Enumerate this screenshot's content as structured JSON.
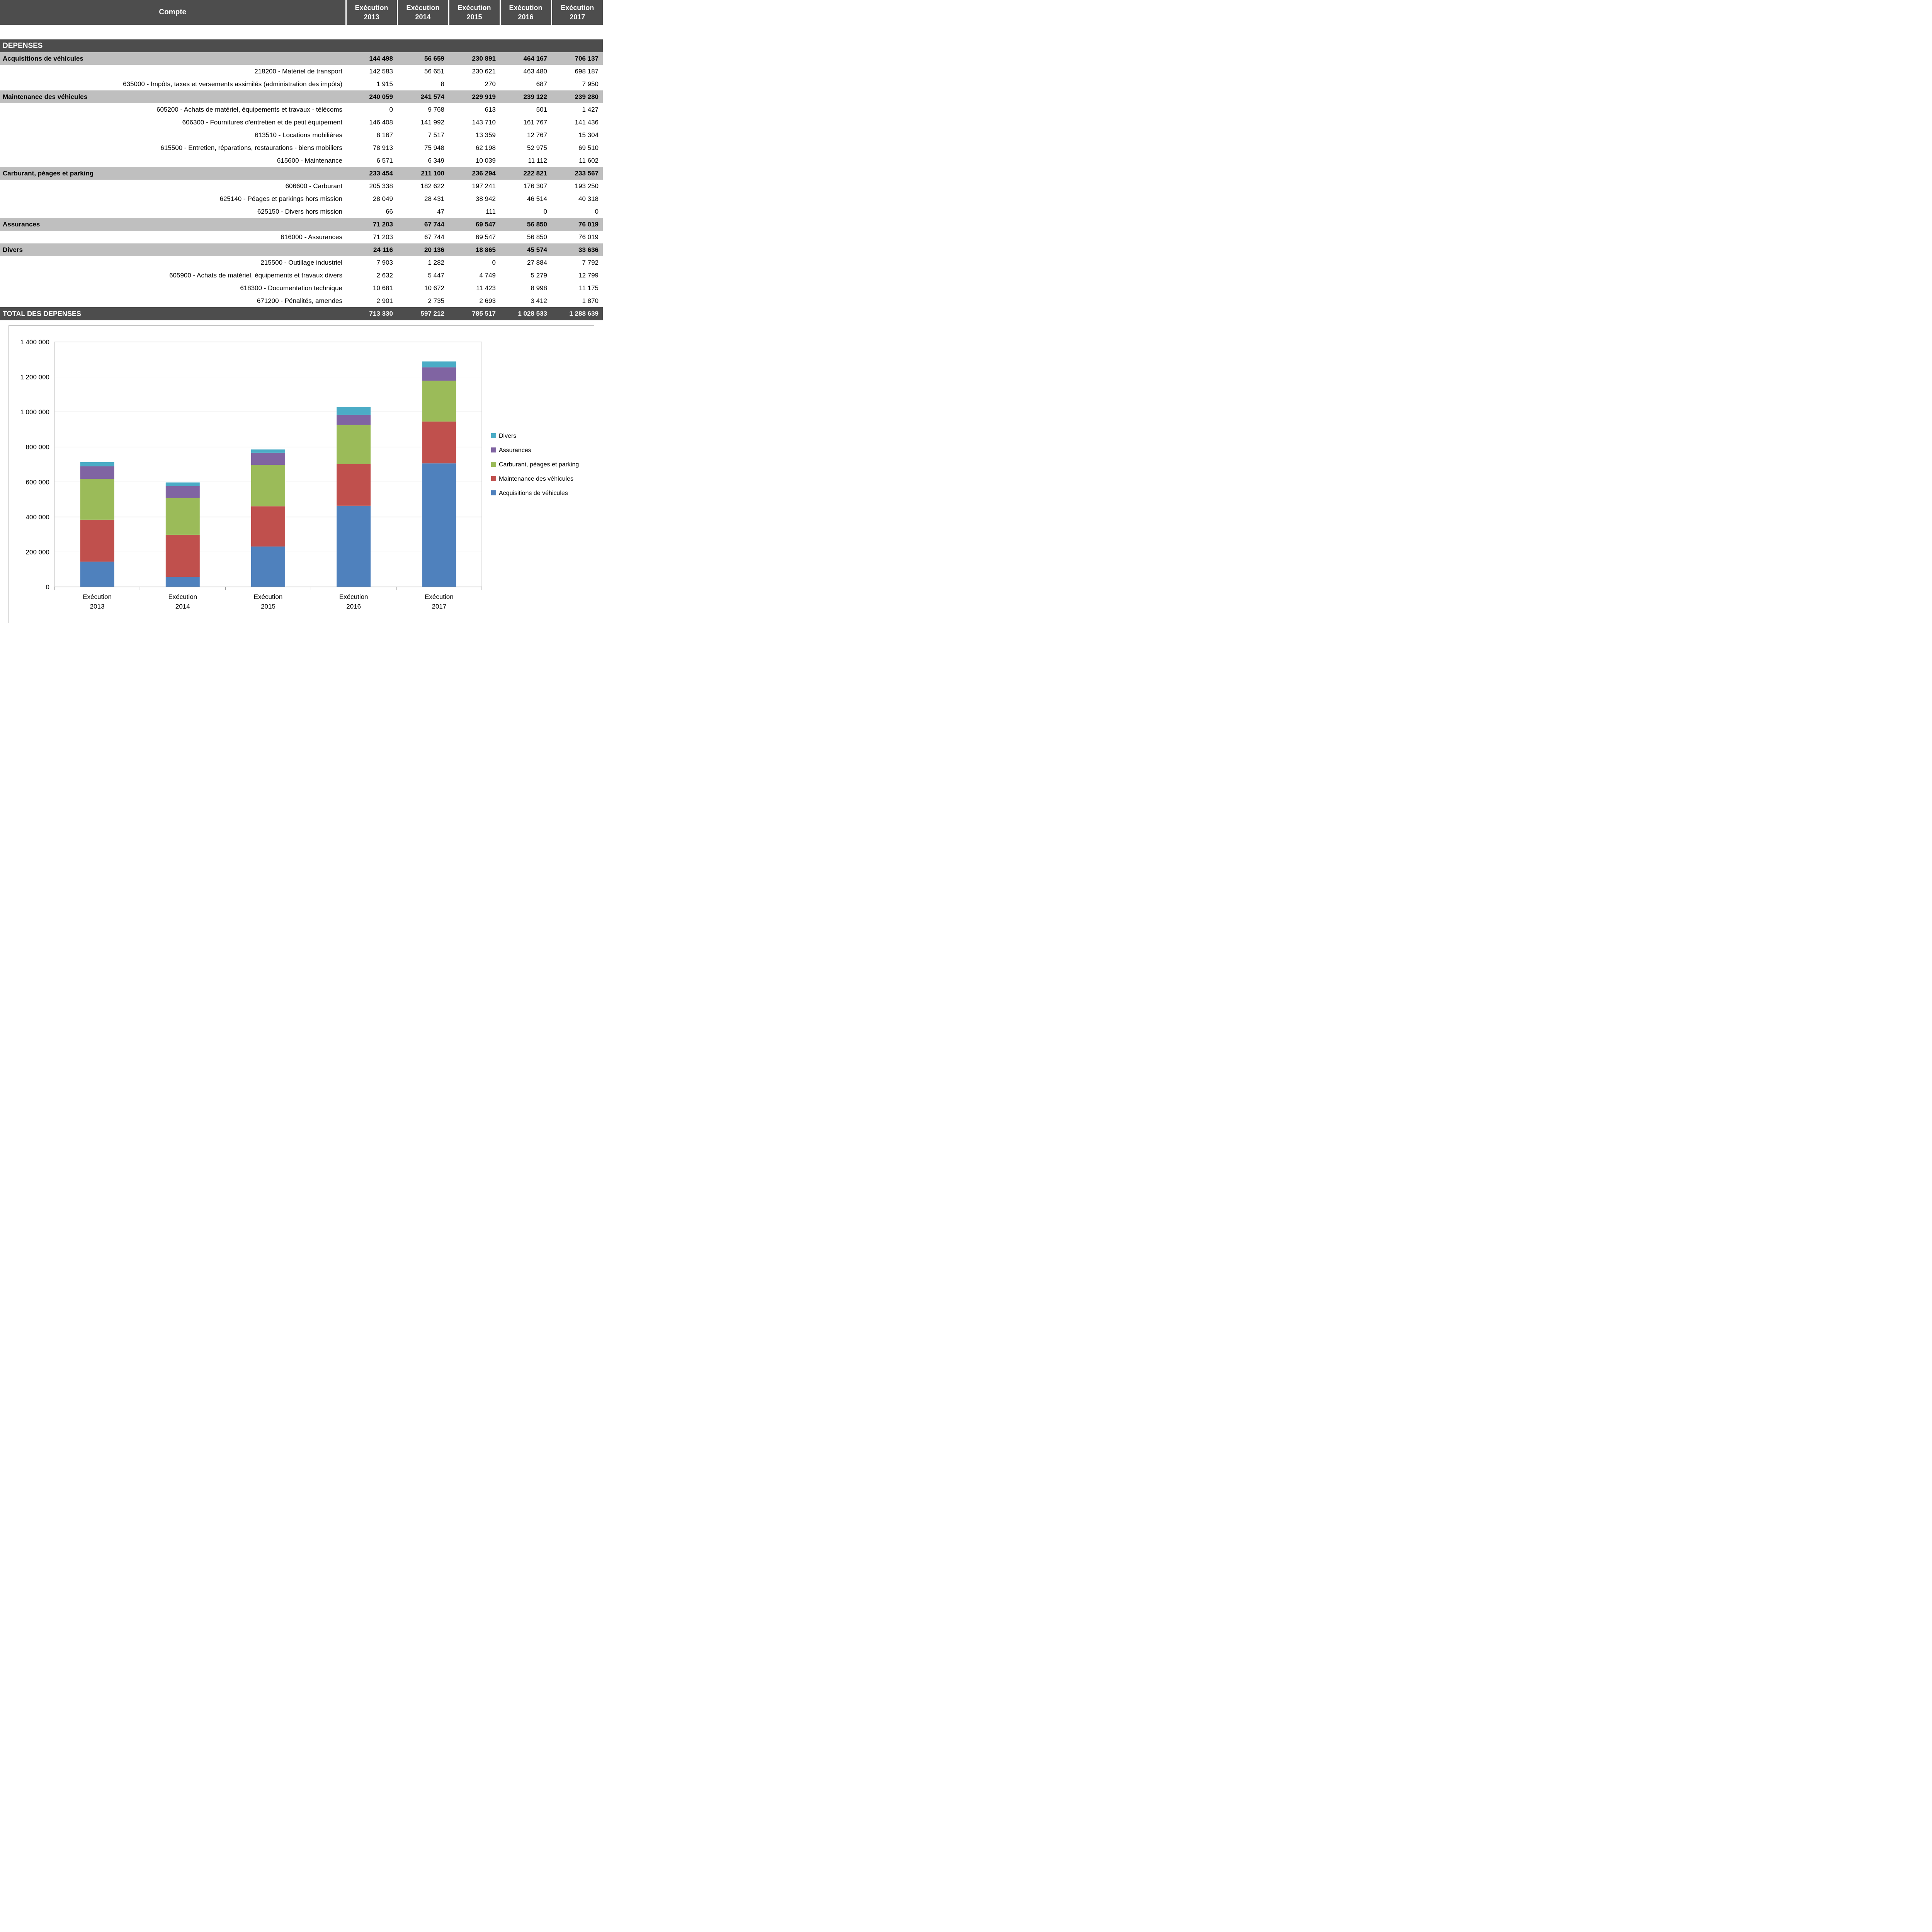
{
  "table": {
    "compte_header": "Compte",
    "year_headers": [
      {
        "l1": "Exécution",
        "l2": "2013"
      },
      {
        "l1": "Exécution",
        "l2": "2014"
      },
      {
        "l1": "Exécution",
        "l2": "2015"
      },
      {
        "l1": "Exécution",
        "l2": "2016"
      },
      {
        "l1": "Exécution",
        "l2": "2017"
      }
    ],
    "rows": [
      {
        "type": "band",
        "label": "DEPENSES",
        "values": []
      },
      {
        "type": "section",
        "label": "Acquisitions de véhicules",
        "values": [
          "144 498",
          "56 659",
          "230 891",
          "464 167",
          "706 137"
        ]
      },
      {
        "type": "detail",
        "label": "218200 - Matériel de transport",
        "values": [
          "142 583",
          "56 651",
          "230 621",
          "463 480",
          "698 187"
        ]
      },
      {
        "type": "detail",
        "label": "635000 - Impôts, taxes et versements assimilés (administration des impôts)",
        "values": [
          "1 915",
          "8",
          "270",
          "687",
          "7 950"
        ]
      },
      {
        "type": "section",
        "label": "Maintenance des véhicules",
        "values": [
          "240 059",
          "241 574",
          "229 919",
          "239 122",
          "239 280"
        ]
      },
      {
        "type": "detail",
        "label": "605200 - Achats de matériel, équipements et travaux - télécoms",
        "values": [
          "0",
          "9 768",
          "613",
          "501",
          "1 427"
        ]
      },
      {
        "type": "detail",
        "label": "606300 - Fournitures d'entretien et de petit équipement",
        "values": [
          "146 408",
          "141 992",
          "143 710",
          "161 767",
          "141 436"
        ]
      },
      {
        "type": "detail",
        "label": "613510 - Locations mobilières",
        "values": [
          "8 167",
          "7 517",
          "13 359",
          "12 767",
          "15 304"
        ]
      },
      {
        "type": "detail",
        "label": "615500 - Entretien, réparations, restaurations - biens mobiliers",
        "values": [
          "78 913",
          "75 948",
          "62 198",
          "52 975",
          "69 510"
        ]
      },
      {
        "type": "detail",
        "label": "615600 - Maintenance",
        "values": [
          "6 571",
          "6 349",
          "10 039",
          "11 112",
          "11 602"
        ]
      },
      {
        "type": "section",
        "label": "Carburant, péages et parking",
        "values": [
          "233 454",
          "211 100",
          "236 294",
          "222 821",
          "233 567"
        ]
      },
      {
        "type": "detail",
        "label": "606600 - Carburant",
        "values": [
          "205 338",
          "182 622",
          "197 241",
          "176 307",
          "193 250"
        ]
      },
      {
        "type": "detail",
        "label": "625140 - Péages et parkings hors mission",
        "values": [
          "28 049",
          "28 431",
          "38 942",
          "46 514",
          "40 318"
        ]
      },
      {
        "type": "detail",
        "label": "625150 - Divers hors mission",
        "values": [
          "66",
          "47",
          "111",
          "0",
          "0"
        ]
      },
      {
        "type": "section",
        "label": "Assurances",
        "values": [
          "71 203",
          "67 744",
          "69 547",
          "56 850",
          "76 019"
        ]
      },
      {
        "type": "detail",
        "label": "616000 - Assurances",
        "values": [
          "71 203",
          "67 744",
          "69 547",
          "56 850",
          "76 019"
        ]
      },
      {
        "type": "section",
        "label": "Divers",
        "values": [
          "24 116",
          "20 136",
          "18 865",
          "45 574",
          "33 636"
        ]
      },
      {
        "type": "detail",
        "label": "215500 - Outillage industriel",
        "values": [
          "7 903",
          "1 282",
          "0",
          "27 884",
          "7 792"
        ]
      },
      {
        "type": "detail",
        "label": "605900 - Achats de matériel, équipements et travaux divers",
        "values": [
          "2 632",
          "5 447",
          "4 749",
          "5 279",
          "12 799"
        ]
      },
      {
        "type": "detail",
        "label": "618300 - Documentation technique",
        "values": [
          "10 681",
          "10 672",
          "11 423",
          "8 998",
          "11 175"
        ]
      },
      {
        "type": "detail",
        "label": "671200 - Pénalités, amendes",
        "values": [
          "2 901",
          "2 735",
          "2 693",
          "3 412",
          "1 870"
        ]
      },
      {
        "type": "total",
        "label": "TOTAL DES DEPENSES",
        "values": [
          "713 330",
          "597 212",
          "785 517",
          "1 028 533",
          "1 288 639"
        ]
      }
    ]
  },
  "chart_data": {
    "type": "bar",
    "stacked": true,
    "categories": [
      "Exécution 2013",
      "Exécution 2014",
      "Exécution 2015",
      "Exécution 2016",
      "Exécution 2017"
    ],
    "series": [
      {
        "name": "Acquisitions de véhicules",
        "color": "#4F81BD",
        "values": [
          144498,
          56659,
          230891,
          464167,
          706137
        ]
      },
      {
        "name": "Maintenance des véhicules",
        "color": "#C0504D",
        "values": [
          240059,
          241574,
          229919,
          239122,
          239280
        ]
      },
      {
        "name": "Carburant, péages et parking",
        "color": "#9BBB59",
        "values": [
          233454,
          211100,
          236294,
          222821,
          233567
        ]
      },
      {
        "name": "Assurances",
        "color": "#8064A2",
        "values": [
          71203,
          67744,
          69547,
          56850,
          76019
        ]
      },
      {
        "name": "Divers",
        "color": "#4BACC6",
        "values": [
          24116,
          20136,
          18865,
          45574,
          33636
        ]
      }
    ],
    "title": "",
    "xlabel": "",
    "ylabel": "",
    "ylim": [
      0,
      1400000
    ],
    "ytick_step": 200000,
    "ytick_labels": [
      "0",
      "200 000",
      "400 000",
      "600 000",
      "800 000",
      "1 000 000",
      "1 200 000",
      "1 400 000"
    ],
    "grid": true,
    "legend_position": "right",
    "legend_order": "reversed",
    "colors": {
      "grid": "#C9C9C9",
      "axis": "#8C8C8C",
      "plot_border": "#BFBFBF"
    }
  }
}
